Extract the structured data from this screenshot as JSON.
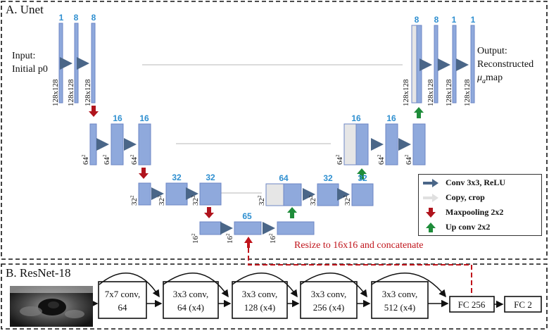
{
  "panel_a": {
    "title": "A. Unet",
    "input_label_1": "Input:",
    "input_label_2": "Initial p0",
    "output_label_1": "Output:",
    "output_label_2": "Reconstructed",
    "output_label_3": "μ",
    "output_label_3_sub": "a",
    "output_label_3_rest": "map",
    "channels": [
      "1",
      "8",
      "8",
      "16",
      "16",
      "32",
      "32",
      "65",
      "64",
      "32",
      "32",
      "16",
      "16",
      "8",
      "8",
      "1"
    ],
    "size_labels": {
      "res128": "128x128",
      "res64": "64",
      "res32": "32",
      "res16": "16",
      "sup": "2"
    },
    "resize_note": "Resize to 16x16 and concatenate"
  },
  "legend": {
    "items": [
      {
        "label": "Conv 3x3, ReLU",
        "icon": "dark-arrow-right-icon"
      },
      {
        "label": "Copy, crop",
        "icon": "gray-arrow-right-icon"
      },
      {
        "label": "Maxpooling 2x2",
        "icon": "red-arrow-down-icon"
      },
      {
        "label": "Up conv 2x2",
        "icon": "green-arrow-up-icon"
      }
    ]
  },
  "panel_b": {
    "title": "B. ResNet-18",
    "blocks": [
      {
        "line1": "7x7 conv,",
        "line2": "64"
      },
      {
        "line1": "3x3 conv,",
        "line2": "64 (x4)"
      },
      {
        "line1": "3x3 conv,",
        "line2": "128 (x4)"
      },
      {
        "line1": "3x3 conv,",
        "line2": "256 (x4)"
      },
      {
        "line1": "3x3 conv,",
        "line2": "512 (x4)"
      }
    ],
    "fc1": "FC 256",
    "fc2": "FC 2"
  },
  "colors": {
    "block_fill": "#8fa9dc",
    "block_stroke": "#6c86c4",
    "copy_fill": "#e6e6e6",
    "channel_text": "#2e8fd0",
    "conv_arrow": "#4a6688",
    "maxpool_arrow": "#b0141d",
    "upconv_arrow": "#1e8c3a",
    "copy_line": "#cfcfcf",
    "resize_red": "#c0141b"
  }
}
